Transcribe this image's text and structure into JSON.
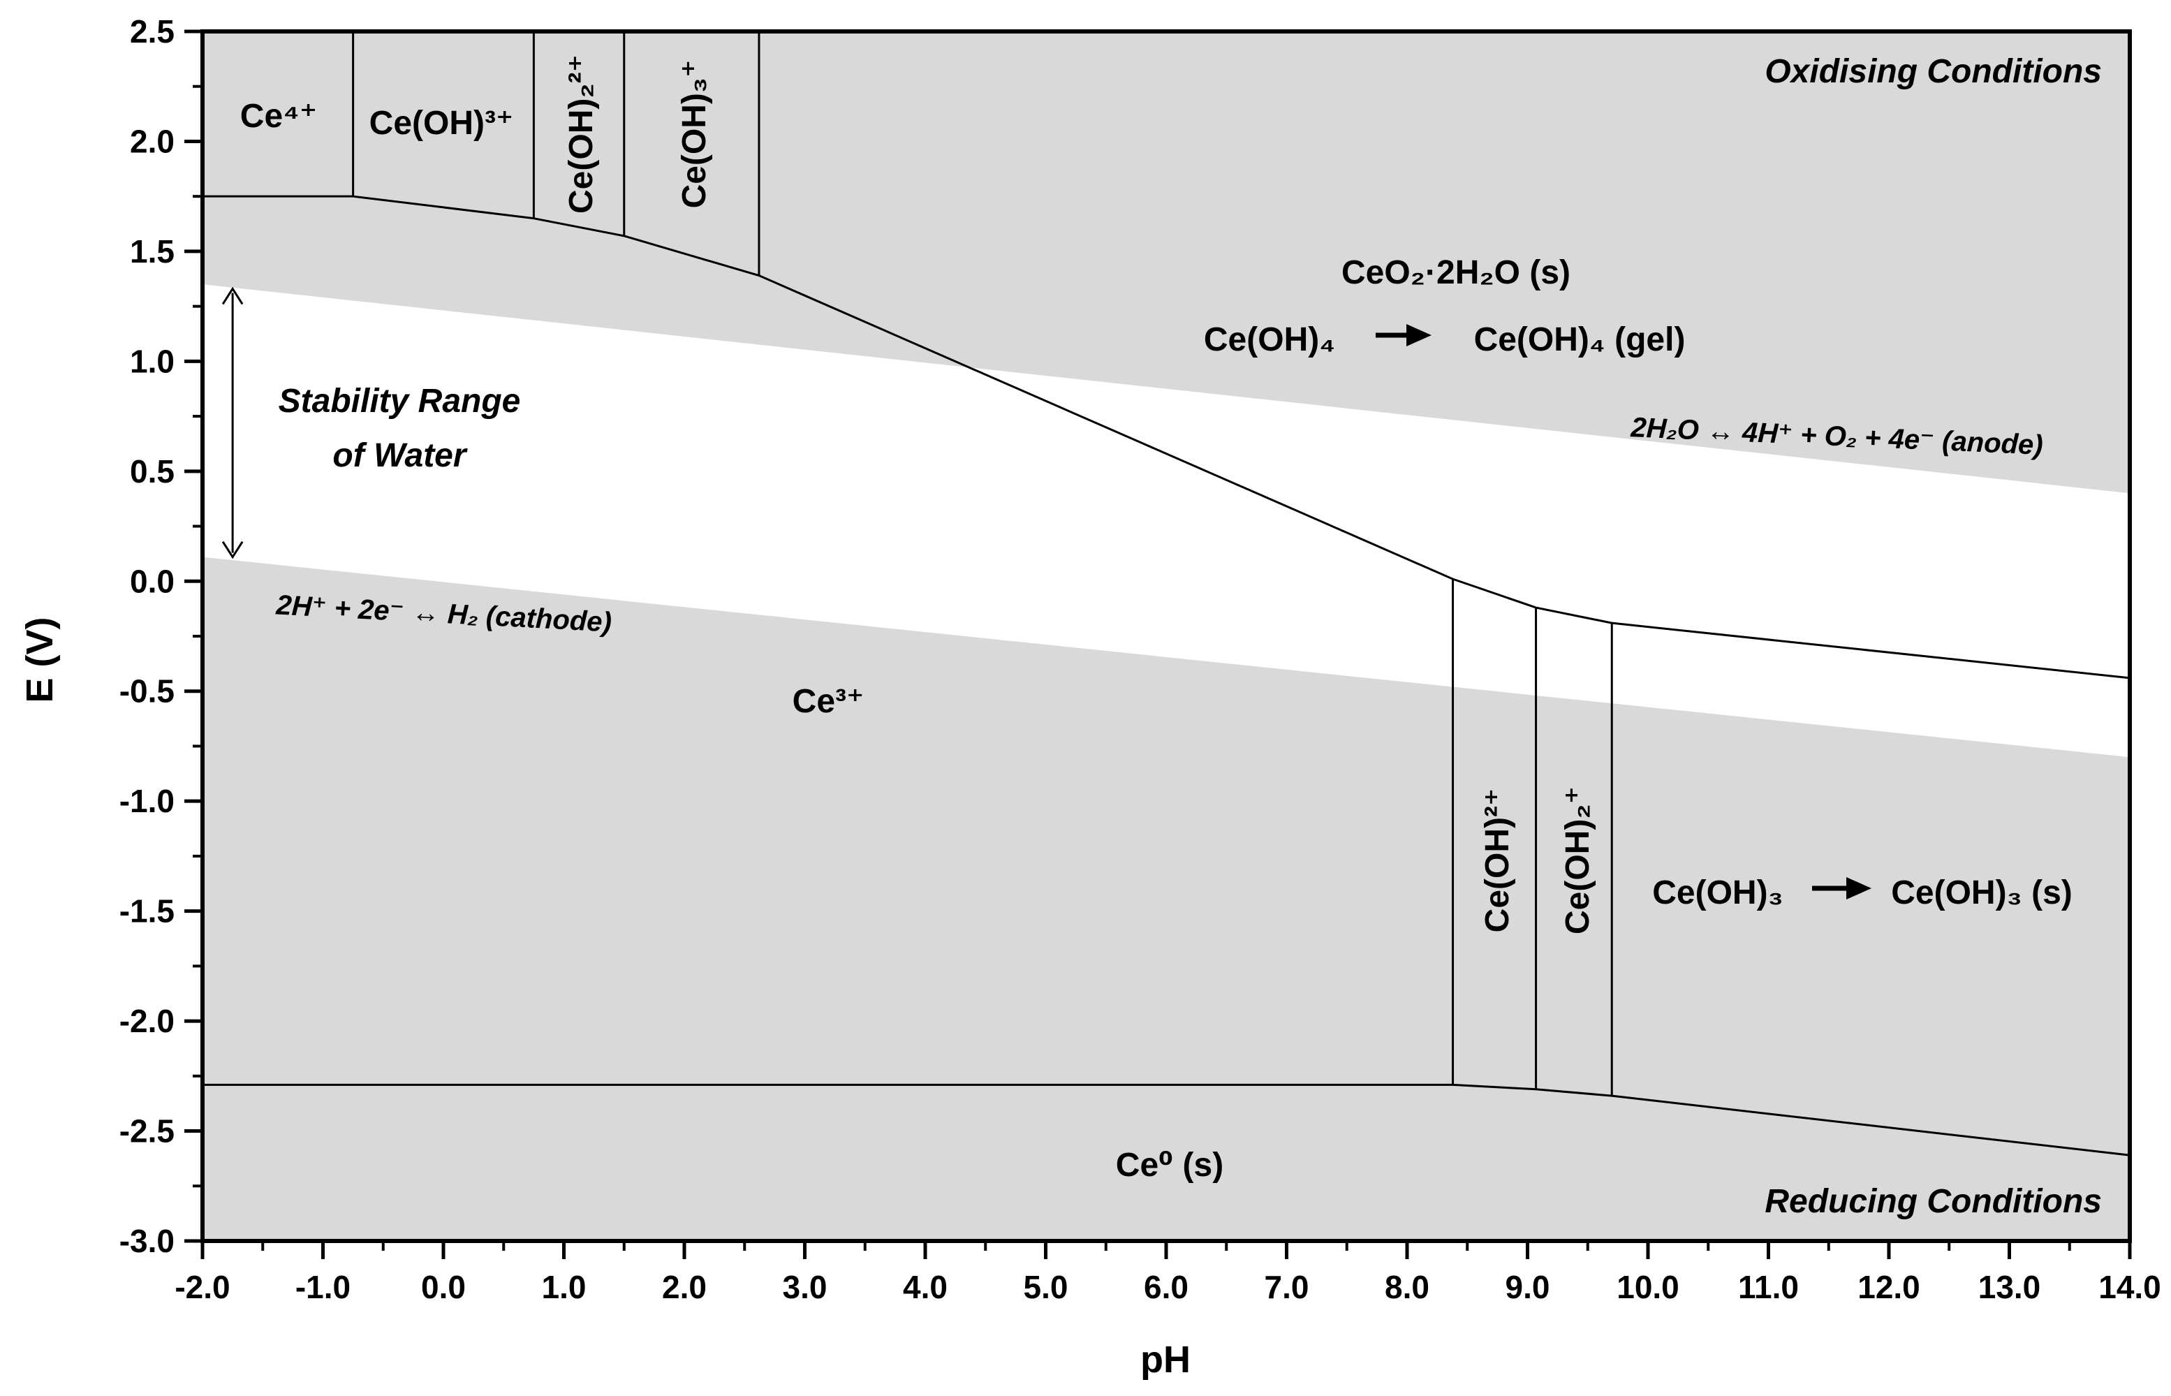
{
  "chart_data": {
    "type": "line",
    "title": "",
    "xlabel": "pH",
    "ylabel": "E (V)",
    "xlim": [
      -2.0,
      14.0
    ],
    "ylim": [
      -3.0,
      2.5
    ],
    "x_ticks": [
      -2,
      -1,
      0,
      1,
      2,
      3,
      4,
      5,
      6,
      7,
      8,
      9,
      10,
      11,
      12,
      13,
      14
    ],
    "x_tick_labels": [
      "-2.0",
      "-1.0",
      "0.0",
      "1.0",
      "2.0",
      "3.0",
      "4.0",
      "5.0",
      "6.0",
      "7.0",
      "8.0",
      "9.0",
      "10.0",
      "11.0",
      "12.0",
      "13.0",
      "14.0"
    ],
    "y_ticks": [
      2.5,
      2.0,
      1.5,
      1.0,
      0.5,
      0.0,
      -0.5,
      -1.0,
      -1.5,
      -2.0,
      -2.5,
      -3.0
    ],
    "y_tick_labels": [
      "2.5",
      "2.0",
      "1.5",
      "1.0",
      "0.5",
      "0.0",
      "-0.5",
      "-1.0",
      "-1.5",
      "-2.0",
      "-2.5",
      "-3.0"
    ],
    "grid": false,
    "background_color": "#d9d9d9",
    "water_window_color": "#ffffff",
    "line_color": "#000000",
    "water_lines": {
      "oxygen_line": [
        [
          -2.0,
          1.35
        ],
        [
          14.0,
          0.4
        ]
      ],
      "hydrogen_line": [
        [
          -2.0,
          0.11
        ],
        [
          14.0,
          -0.8
        ]
      ]
    },
    "series": [
      {
        "role": "upper_boundary",
        "x": [
          -2.0,
          -0.75,
          0.75,
          1.5,
          2.62,
          8.38,
          9.07,
          9.7,
          14.0
        ],
        "y": [
          1.75,
          1.75,
          1.65,
          1.57,
          1.39,
          0.01,
          -0.12,
          -0.19,
          -0.44
        ]
      },
      {
        "role": "lower_boundary",
        "x": [
          -2.0,
          8.38,
          9.07,
          9.7,
          14.0
        ],
        "y": [
          -2.29,
          -2.29,
          -2.31,
          -2.34,
          -2.61
        ]
      }
    ],
    "vertical_boundaries": [
      {
        "x": -0.75,
        "y_from": 1.75,
        "y_to": 2.5
      },
      {
        "x": 0.75,
        "y_from": 1.65,
        "y_to": 2.5
      },
      {
        "x": 1.5,
        "y_from": 1.57,
        "y_to": 2.5
      },
      {
        "x": 2.62,
        "y_from": 1.39,
        "y_to": 2.5
      },
      {
        "x": 8.38,
        "y_from": -2.29,
        "y_to": 0.01
      },
      {
        "x": 9.07,
        "y_from": -2.31,
        "y_to": -0.12
      },
      {
        "x": 9.7,
        "y_from": -2.34,
        "y_to": -0.19
      }
    ],
    "water_arrow": {
      "x": -1.75,
      "y_from": 0.11,
      "y_to": 1.33
    },
    "annotations": {
      "ce4": "Ce⁴⁺",
      "ceoh3": "Ce(OH)³⁺",
      "ceoh2_2": "Ce(OH)₂²⁺",
      "ceoh3_plus": "Ce(OH)₃⁺",
      "oxidising": "Oxidising Conditions",
      "ceo2": "CeO₂·2H₂O (s)",
      "ceoh4_left": "Ce(OH)₄",
      "ceoh4_right": "Ce(OH)₄ (gel)",
      "stability_1": "Stability Range",
      "stability_2": "of Water",
      "anode": "2H₂O ↔ 4H⁺ + O₂ + 4e⁻ (anode)",
      "cathode": "2H⁺ + 2e⁻ ↔ H₂ (cathode)",
      "ce3": "Ce³⁺",
      "ceoh_2plus": "Ce(OH)²⁺",
      "ceoh2_plus": "Ce(OH)₂⁺",
      "ceoh3_left": "Ce(OH)₃",
      "ceoh3_right": "Ce(OH)₃ (s)",
      "ce0": "Ce⁰ (s)",
      "reducing": "Reducing Conditions"
    }
  }
}
